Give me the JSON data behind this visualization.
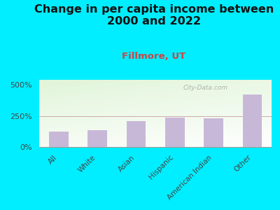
{
  "title": "Change in per capita income between\n2000 and 2022",
  "subtitle": "Fillmore, UT",
  "categories": [
    "All",
    "White",
    "Asian",
    "Hispanic",
    "American Indian",
    "Other"
  ],
  "values": [
    125,
    135,
    210,
    235,
    230,
    420
  ],
  "bar_color": "#c8b8d8",
  "background_outer": "#00eeff",
  "title_fontsize": 11.5,
  "subtitle_fontsize": 9.5,
  "subtitle_color": "#cc4444",
  "yticks": [
    0,
    250,
    500
  ],
  "ytick_labels": [
    "0%",
    "250%",
    "500%"
  ],
  "ylim": [
    0,
    540
  ],
  "watermark": "City-Data.com"
}
